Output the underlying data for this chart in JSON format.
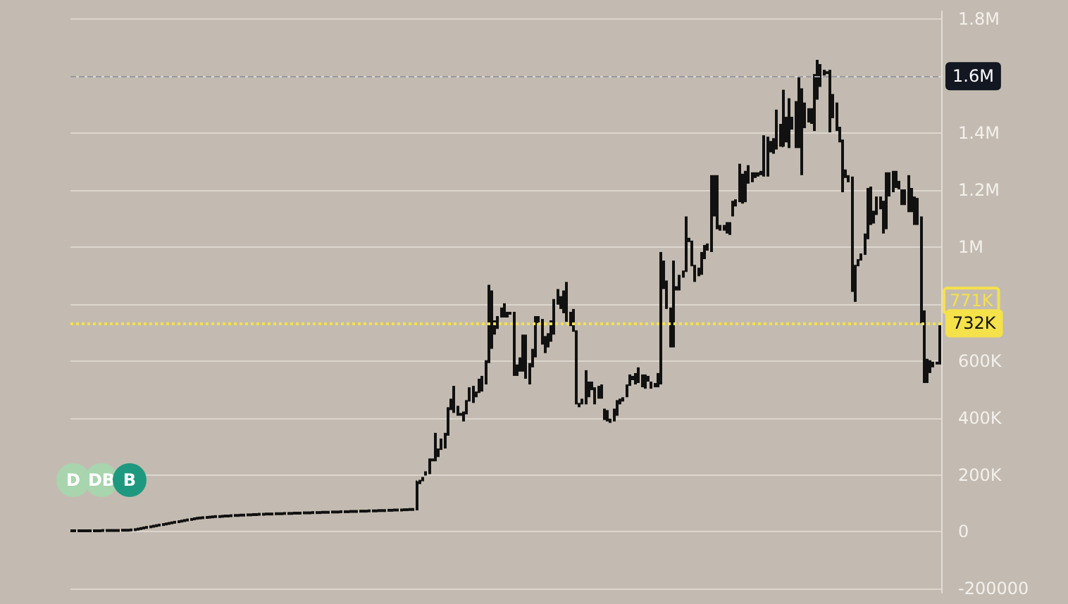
{
  "chart_data": {
    "type": "candlestick",
    "color": "#111111",
    "grid": "y",
    "tick_labels": "y",
    "ylim": [
      -214000,
      1828000
    ],
    "yticks": [
      -200000,
      0,
      {
        "value": 200000,
        "label": "200K"
      },
      {
        "value": 400000,
        "label": "400K"
      },
      {
        "value": 600000,
        "label": "600K"
      },
      {
        "value": 800000,
        "label": null
      },
      {
        "value": 1000000,
        "label": "1M"
      },
      {
        "value": 1200000,
        "label": "1.2M"
      },
      {
        "value": 1400000,
        "label": "1.4M"
      },
      {
        "value": 1600000,
        "label": null
      },
      {
        "value": 1800000,
        "label": "1.8M"
      }
    ],
    "ref_lines": [
      {
        "axis": "y",
        "value": 732000,
        "label": "732K",
        "color": "#f5e14a",
        "line_style": "dotted"
      },
      {
        "axis": "y",
        "value": 1600000,
        "label": "1.6M",
        "color": "#9a9aa0",
        "line_style": "dashed"
      }
    ],
    "annotations": [
      "D",
      "DB",
      "B",
      "771K"
    ],
    "categories": [
      null,
      null,
      null,
      null,
      null,
      null,
      null,
      null,
      null,
      null,
      null,
      null,
      null,
      null,
      null,
      null,
      null,
      null,
      null,
      null,
      null,
      null,
      null,
      null,
      null,
      null,
      null,
      null,
      null,
      null,
      null,
      null,
      null,
      null,
      null,
      null,
      null,
      null,
      null,
      null,
      null,
      null,
      null,
      null,
      null,
      null,
      null,
      null,
      null,
      null,
      null,
      null,
      null,
      null,
      null,
      null,
      null,
      null,
      null,
      null,
      null,
      null,
      null,
      null,
      null,
      null,
      null,
      null,
      null,
      null,
      null,
      null,
      null,
      null,
      null,
      null,
      null,
      null,
      null,
      null,
      null,
      null,
      null,
      null,
      null,
      null,
      null,
      null,
      null,
      null,
      null,
      null,
      null,
      null,
      null,
      null,
      null,
      null,
      null,
      null,
      null,
      null,
      null,
      null,
      null,
      null,
      null,
      null,
      null,
      null,
      null,
      null,
      null,
      null,
      null,
      null,
      null,
      null,
      null,
      null,
      null,
      null,
      null,
      null,
      null,
      null,
      null,
      null,
      null,
      null,
      null,
      null,
      null,
      null,
      null,
      null,
      null,
      null,
      null,
      null,
      null,
      null,
      null,
      null,
      null,
      null,
      null,
      null,
      null,
      null,
      null,
      null,
      null,
      null,
      null,
      null,
      null,
      null,
      null,
      null,
      null,
      null,
      null,
      null,
      null,
      null,
      null,
      null,
      null,
      null,
      null,
      null,
      null,
      null,
      null,
      null,
      null,
      null,
      null,
      null,
      null,
      null,
      null,
      null,
      null,
      null,
      null,
      null,
      null,
      null,
      null,
      null,
      null,
      null,
      null,
      null,
      null,
      null,
      null,
      null,
      null,
      null,
      null,
      null,
      null,
      null,
      null,
      null,
      null,
      null,
      null,
      null,
      null,
      null,
      null,
      null,
      null,
      null,
      null,
      null,
      null,
      null,
      null,
      null,
      null,
      null,
      null,
      null,
      null,
      null,
      null,
      null,
      null,
      null,
      null,
      null,
      null,
      null,
      null,
      null,
      null,
      null,
      null,
      null,
      null,
      null,
      null,
      null,
      null,
      null,
      null,
      null,
      null,
      null,
      null,
      null,
      null,
      null,
      null,
      null,
      null,
      null,
      null,
      null,
      null,
      null,
      null,
      null,
      null,
      null,
      null,
      null,
      null,
      null,
      null,
      null,
      null,
      null
    ],
    "ohlc": [
      [
        1000,
        6000,
        1000,
        6000
      ],
      [
        1000,
        6000,
        1000,
        6000
      ],
      [
        1000,
        6000,
        1000,
        6000
      ],
      [
        1000,
        6000,
        1000,
        6000
      ],
      [
        1000,
        6000,
        1000,
        6000
      ],
      [
        1000,
        6000,
        1000,
        6000
      ],
      [
        1000,
        6000,
        1000,
        6000
      ],
      [
        1000,
        6000,
        1000,
        6000
      ],
      [
        1000,
        6000,
        1000,
        6000
      ],
      [
        1000,
        6000,
        1000,
        6000
      ],
      [
        2000,
        7000,
        2000,
        7000
      ],
      [
        2000,
        7000,
        2000,
        7000
      ],
      [
        2000,
        7000,
        2000,
        7000
      ],
      [
        2000,
        7000,
        2000,
        7000
      ],
      [
        2000,
        7000,
        2000,
        7000
      ],
      [
        2000,
        7000,
        2000,
        7000
      ],
      [
        3000,
        8000,
        3000,
        8000
      ],
      [
        3000,
        8000,
        3000,
        8000
      ],
      [
        3000,
        8000,
        3000,
        8000
      ],
      [
        4000,
        9000,
        4000,
        9000
      ],
      [
        5000,
        10000,
        5000,
        10000
      ],
      [
        7000,
        12000,
        7000,
        12000
      ],
      [
        9000,
        14000,
        9000,
        14000
      ],
      [
        11000,
        16000,
        11000,
        16000
      ],
      [
        13000,
        18000,
        13000,
        18000
      ],
      [
        15000,
        20000,
        15000,
        20000
      ],
      [
        17000,
        22000,
        17000,
        22000
      ],
      [
        19000,
        24000,
        19000,
        24000
      ],
      [
        21000,
        26000,
        21000,
        26000
      ],
      [
        23000,
        28000,
        23000,
        28000
      ],
      [
        25000,
        30000,
        25000,
        30000
      ],
      [
        27000,
        32000,
        27000,
        32000
      ],
      [
        29000,
        34000,
        29000,
        34000
      ],
      [
        31000,
        36000,
        31000,
        36000
      ],
      [
        33000,
        38000,
        33000,
        38000
      ],
      [
        35000,
        40000,
        35000,
        40000
      ],
      [
        37000,
        42000,
        37000,
        42000
      ],
      [
        39000,
        44000,
        39000,
        44000
      ],
      [
        41000,
        46000,
        41000,
        46000
      ],
      [
        43000,
        48000,
        43000,
        48000
      ],
      [
        45000,
        50000,
        45000,
        50000
      ],
      [
        46000,
        51000,
        46000,
        51000
      ],
      [
        47000,
        52000,
        47000,
        52000
      ],
      [
        48000,
        53000,
        48000,
        53000
      ],
      [
        49000,
        54000,
        49000,
        54000
      ],
      [
        50000,
        55000,
        50000,
        55000
      ],
      [
        51000,
        56000,
        51000,
        56000
      ],
      [
        51000,
        56000,
        51000,
        56000
      ],
      [
        52000,
        57000,
        52000,
        57000
      ],
      [
        53000,
        58000,
        53000,
        58000
      ],
      [
        53000,
        58000,
        53000,
        58000
      ],
      [
        54000,
        59000,
        54000,
        59000
      ],
      [
        55000,
        60000,
        55000,
        60000
      ],
      [
        55000,
        60000,
        55000,
        60000
      ],
      [
        56000,
        61000,
        56000,
        61000
      ],
      [
        56000,
        61000,
        56000,
        61000
      ],
      [
        57000,
        62000,
        57000,
        62000
      ],
      [
        57000,
        62000,
        57000,
        62000
      ],
      [
        58000,
        63000,
        58000,
        63000
      ],
      [
        58000,
        63000,
        58000,
        63000
      ],
      [
        59000,
        64000,
        59000,
        64000
      ],
      [
        59000,
        64000,
        59000,
        64000
      ],
      [
        60000,
        65000,
        60000,
        65000
      ],
      [
        60000,
        65000,
        60000,
        65000
      ],
      [
        60000,
        65000,
        60000,
        65000
      ],
      [
        61000,
        66000,
        61000,
        66000
      ],
      [
        61000,
        66000,
        61000,
        66000
      ],
      [
        61000,
        66000,
        61000,
        66000
      ],
      [
        62000,
        67000,
        62000,
        67000
      ],
      [
        62000,
        67000,
        62000,
        67000
      ],
      [
        62000,
        67000,
        62000,
        67000
      ],
      [
        63000,
        68000,
        63000,
        68000
      ],
      [
        63000,
        68000,
        63000,
        68000
      ],
      [
        63000,
        68000,
        63000,
        68000
      ],
      [
        64000,
        69000,
        64000,
        69000
      ],
      [
        64000,
        69000,
        64000,
        69000
      ],
      [
        64000,
        69000,
        64000,
        69000
      ],
      [
        65000,
        70000,
        65000,
        70000
      ],
      [
        65000,
        70000,
        65000,
        70000
      ],
      [
        65000,
        70000,
        65000,
        70000
      ],
      [
        66000,
        71000,
        66000,
        71000
      ],
      [
        66000,
        71000,
        66000,
        71000
      ],
      [
        66000,
        71000,
        66000,
        71000
      ],
      [
        67000,
        72000,
        67000,
        72000
      ],
      [
        67000,
        72000,
        67000,
        72000
      ],
      [
        67000,
        72000,
        67000,
        72000
      ],
      [
        68000,
        73000,
        68000,
        73000
      ],
      [
        68000,
        73000,
        68000,
        73000
      ],
      [
        68000,
        73000,
        68000,
        73000
      ],
      [
        69000,
        74000,
        69000,
        74000
      ],
      [
        69000,
        74000,
        69000,
        74000
      ],
      [
        69000,
        74000,
        69000,
        74000
      ],
      [
        70000,
        75000,
        70000,
        75000
      ],
      [
        70000,
        75000,
        70000,
        75000
      ],
      [
        70000,
        75000,
        70000,
        75000
      ],
      [
        71000,
        76000,
        71000,
        76000
      ],
      [
        71000,
        76000,
        71000,
        76000
      ],
      [
        71000,
        76000,
        71000,
        76000
      ],
      [
        72000,
        77000,
        72000,
        77000
      ],
      [
        72000,
        77000,
        72000,
        77000
      ],
      [
        72000,
        77000,
        72000,
        77000
      ],
      [
        73000,
        78000,
        73000,
        78000
      ],
      [
        73000,
        78000,
        73000,
        78000
      ],
      [
        74000,
        79000,
        74000,
        79000
      ],
      [
        74000,
        79000,
        74000,
        79000
      ],
      [
        74000,
        79000,
        74000,
        79000
      ],
      [
        75000,
        80000,
        75000,
        80000
      ],
      [
        75000,
        80000,
        75000,
        80000
      ],
      [
        76000,
        81000,
        76000,
        81000
      ],
      [
        76000,
        81000,
        76000,
        81000
      ],
      [
        78000,
        180000,
        78000,
        175000
      ],
      [
        170000,
        180000,
        170000,
        180000
      ],
      [
        180000,
        190000,
        180000,
        190000
      ],
      [
        200000,
        210000,
        200000,
        210000
      ],
      [
        205000,
        255000,
        205000,
        255000
      ],
      [
        250000,
        255000,
        250000,
        255000
      ],
      [
        250000,
        345000,
        250000,
        345000
      ],
      [
        290000,
        290000,
        265000,
        265000
      ],
      [
        290000,
        325000,
        290000,
        325000
      ],
      [
        295000,
        345000,
        295000,
        345000
      ],
      [
        340000,
        435000,
        340000,
        435000
      ],
      [
        430000,
        465000,
        430000,
        465000
      ],
      [
        510000,
        510000,
        420000,
        420000
      ],
      [
        410000,
        440000,
        410000,
        440000
      ],
      [
        410000,
        415000,
        410000,
        415000
      ],
      [
        390000,
        420000,
        390000,
        420000
      ],
      [
        415000,
        460000,
        415000,
        460000
      ],
      [
        460000,
        505000,
        460000,
        505000
      ],
      [
        455000,
        510000,
        455000,
        510000
      ],
      [
        475000,
        490000,
        475000,
        490000
      ],
      [
        490000,
        535000,
        490000,
        535000
      ],
      [
        495000,
        545000,
        495000,
        545000
      ],
      [
        520000,
        600000,
        520000,
        600000
      ],
      [
        595000,
        865000,
        595000,
        865000
      ],
      [
        845000,
        845000,
        645000,
        645000
      ],
      [
        695000,
        740000,
        695000,
        740000
      ],
      [
        715000,
        755000,
        715000,
        755000
      ],
      [
        755000,
        785000,
        755000,
        785000
      ],
      [
        755000,
        800000,
        755000,
        800000
      ],
      [
        770000,
        770000,
        755000,
        755000
      ],
      [
        765000,
        770000,
        765000,
        770000
      ],
      [
        770000,
        770000,
        550000,
        550000
      ],
      [
        550000,
        585000,
        550000,
        585000
      ],
      [
        565000,
        610000,
        565000,
        610000
      ],
      [
        565000,
        690000,
        565000,
        690000
      ],
      [
        690000,
        690000,
        540000,
        540000
      ],
      [
        590000,
        590000,
        520000,
        520000
      ],
      [
        580000,
        640000,
        580000,
        640000
      ],
      [
        615000,
        755000,
        615000,
        755000
      ],
      [
        735000,
        755000,
        735000,
        755000
      ],
      [
        745000,
        745000,
        660000,
        660000
      ],
      [
        685000,
        685000,
        630000,
        630000
      ],
      [
        650000,
        695000,
        650000,
        695000
      ],
      [
        670000,
        740000,
        670000,
        740000
      ],
      [
        695000,
        815000,
        695000,
        815000
      ],
      [
        800000,
        850000,
        800000,
        850000
      ],
      [
        825000,
        825000,
        785000,
        785000
      ],
      [
        770000,
        845000,
        770000,
        845000
      ],
      [
        740000,
        875000,
        740000,
        875000
      ],
      [
        770000,
        770000,
        725000,
        725000
      ],
      [
        705000,
        780000,
        705000,
        780000
      ],
      [
        705000,
        705000,
        450000,
        450000
      ],
      [
        450000,
        450000,
        440000,
        440000
      ],
      [
        450000,
        465000,
        450000,
        465000
      ],
      [
        450000,
        565000,
        450000,
        565000
      ],
      [
        525000,
        525000,
        475000,
        475000
      ],
      [
        500000,
        525000,
        500000,
        525000
      ],
      [
        505000,
        505000,
        450000,
        450000
      ],
      [
        470000,
        510000,
        470000,
        510000
      ],
      [
        515000,
        515000,
        470000,
        470000
      ],
      [
        430000,
        430000,
        395000,
        395000
      ],
      [
        425000,
        425000,
        390000,
        390000
      ],
      [
        395000,
        395000,
        385000,
        385000
      ],
      [
        390000,
        430000,
        390000,
        430000
      ],
      [
        410000,
        460000,
        410000,
        460000
      ],
      [
        450000,
        465000,
        450000,
        465000
      ],
      [
        460000,
        470000,
        460000,
        470000
      ],
      [
        475000,
        515000,
        475000,
        515000
      ],
      [
        515000,
        550000,
        515000,
        550000
      ],
      [
        535000,
        545000,
        535000,
        545000
      ],
      [
        520000,
        555000,
        520000,
        555000
      ],
      [
        525000,
        575000,
        525000,
        575000
      ],
      [
        550000,
        550000,
        510000,
        510000
      ],
      [
        505000,
        550000,
        505000,
        550000
      ],
      [
        545000,
        545000,
        530000,
        530000
      ],
      [
        525000,
        525000,
        505000,
        505000
      ],
      [
        510000,
        520000,
        510000,
        520000
      ],
      [
        510000,
        555000,
        510000,
        555000
      ],
      [
        520000,
        980000,
        520000,
        980000
      ],
      [
        950000,
        950000,
        855000,
        855000
      ],
      [
        880000,
        880000,
        785000,
        785000
      ],
      [
        785000,
        785000,
        650000,
        650000
      ],
      [
        650000,
        950000,
        650000,
        950000
      ],
      [
        850000,
        860000,
        850000,
        860000
      ],
      [
        850000,
        900000,
        850000,
        900000
      ],
      [
        895000,
        915000,
        895000,
        915000
      ],
      [
        915000,
        1105000,
        915000,
        1105000
      ],
      [
        1030000,
        1030000,
        1020000,
        1020000
      ],
      [
        1020000,
        1020000,
        935000,
        935000
      ],
      [
        935000,
        935000,
        880000,
        880000
      ],
      [
        900000,
        925000,
        900000,
        925000
      ],
      [
        905000,
        980000,
        905000,
        980000
      ],
      [
        960000,
        1005000,
        960000,
        1005000
      ],
      [
        990000,
        1010000,
        990000,
        1010000
      ],
      [
        985000,
        1250000,
        985000,
        1250000
      ],
      [
        1250000,
        1250000,
        1110000,
        1110000
      ],
      [
        1065000,
        1250000,
        1065000,
        1250000
      ],
      [
        1075000,
        1075000,
        1060000,
        1060000
      ],
      [
        1060000,
        1075000,
        1060000,
        1075000
      ],
      [
        1050000,
        1085000,
        1050000,
        1085000
      ],
      [
        1045000,
        1085000,
        1045000,
        1085000
      ],
      [
        1110000,
        1160000,
        1110000,
        1160000
      ],
      [
        1145000,
        1165000,
        1145000,
        1165000
      ],
      [
        1160000,
        1290000,
        1160000,
        1290000
      ],
      [
        1255000,
        1255000,
        1155000,
        1155000
      ],
      [
        1160000,
        1265000,
        1160000,
        1265000
      ],
      [
        1225000,
        1285000,
        1225000,
        1285000
      ],
      [
        1260000,
        1260000,
        1230000,
        1230000
      ],
      [
        1245000,
        1260000,
        1245000,
        1260000
      ],
      [
        1250000,
        1260000,
        1250000,
        1260000
      ],
      [
        1255000,
        1265000,
        1255000,
        1265000
      ],
      [
        1250000,
        1390000,
        1250000,
        1390000
      ],
      [
        1385000,
        1385000,
        1250000,
        1250000
      ],
      [
        1335000,
        1370000,
        1335000,
        1370000
      ],
      [
        1330000,
        1380000,
        1330000,
        1380000
      ],
      [
        1345000,
        1480000,
        1345000,
        1480000
      ],
      [
        1430000,
        1430000,
        1355000,
        1355000
      ],
      [
        1355000,
        1550000,
        1350000,
        1550000
      ],
      [
        1455000,
        1455000,
        1370000,
        1370000
      ],
      [
        1350000,
        1520000,
        1350000,
        1520000
      ],
      [
        1415000,
        1455000,
        1415000,
        1455000
      ],
      [
        1350000,
        1510000,
        1350000,
        1510000
      ],
      [
        1350000,
        1595000,
        1350000,
        1595000
      ],
      [
        1555000,
        1555000,
        1255000,
        1255000
      ],
      [
        1420000,
        1505000,
        1420000,
        1505000
      ],
      [
        1440000,
        1485000,
        1440000,
        1485000
      ],
      [
        1435000,
        1485000,
        1435000,
        1485000
      ],
      [
        1410000,
        1605000,
        1410000,
        1605000
      ],
      [
        1520000,
        1655000,
        1520000,
        1655000
      ],
      [
        1640000,
        1640000,
        1565000,
        1565000
      ],
      [
        1605000,
        1620000,
        1605000,
        1620000
      ],
      [
        1615000,
        1615000,
        1610000,
        1610000
      ],
      [
        1620000,
        1620000,
        1405000,
        1405000
      ],
      [
        1535000,
        1535000,
        1455000,
        1455000
      ],
      [
        1505000,
        1505000,
        1410000,
        1410000
      ],
      [
        1420000,
        1420000,
        1370000,
        1370000
      ],
      [
        1375000,
        1375000,
        1195000,
        1195000
      ],
      [
        1270000,
        1270000,
        1245000,
        1245000
      ],
      [
        1250000,
        1250000,
        1230000,
        1230000
      ],
      [
        1245000,
        1245000,
        845000,
        845000
      ],
      [
        810000,
        935000,
        810000,
        935000
      ],
      [
        935000,
        955000,
        935000,
        955000
      ],
      [
        955000,
        975000,
        955000,
        975000
      ],
      [
        975000,
        1045000,
        975000,
        1045000
      ],
      [
        1030000,
        1205000,
        1030000,
        1205000
      ],
      [
        1210000,
        1210000,
        1080000,
        1080000
      ],
      [
        1085000,
        1125000,
        1085000,
        1125000
      ],
      [
        1115000,
        1175000,
        1115000,
        1175000
      ],
      [
        1135000,
        1175000,
        1135000,
        1175000
      ],
      [
        1160000,
        1160000,
        1050000,
        1050000
      ],
      [
        1065000,
        1260000,
        1065000,
        1260000
      ],
      [
        1180000,
        1260000,
        1180000,
        1260000
      ],
      [
        1195000,
        1265000,
        1195000,
        1265000
      ],
      [
        1210000,
        1265000,
        1210000,
        1265000
      ],
      [
        1230000,
        1230000,
        1205000,
        1205000
      ],
      [
        1200000,
        1200000,
        1150000,
        1150000
      ],
      [
        1150000,
        1200000,
        1150000,
        1200000
      ],
      [
        1250000,
        1250000,
        1125000,
        1125000
      ],
      [
        1205000,
        1205000,
        1125000,
        1125000
      ],
      [
        1175000,
        1175000,
        1080000,
        1080000
      ],
      [
        1080000,
        1170000,
        1080000,
        1170000
      ],
      [
        1105000,
        1105000,
        735000,
        735000
      ],
      [
        775000,
        775000,
        525000,
        525000
      ],
      [
        605000,
        605000,
        525000,
        525000
      ],
      [
        560000,
        600000,
        560000,
        600000
      ],
      [
        595000,
        595000,
        580000,
        580000
      ],
      [
        590000,
        595000,
        590000,
        595000
      ],
      [
        590000,
        735000,
        590000,
        732000
      ]
    ]
  }
}
